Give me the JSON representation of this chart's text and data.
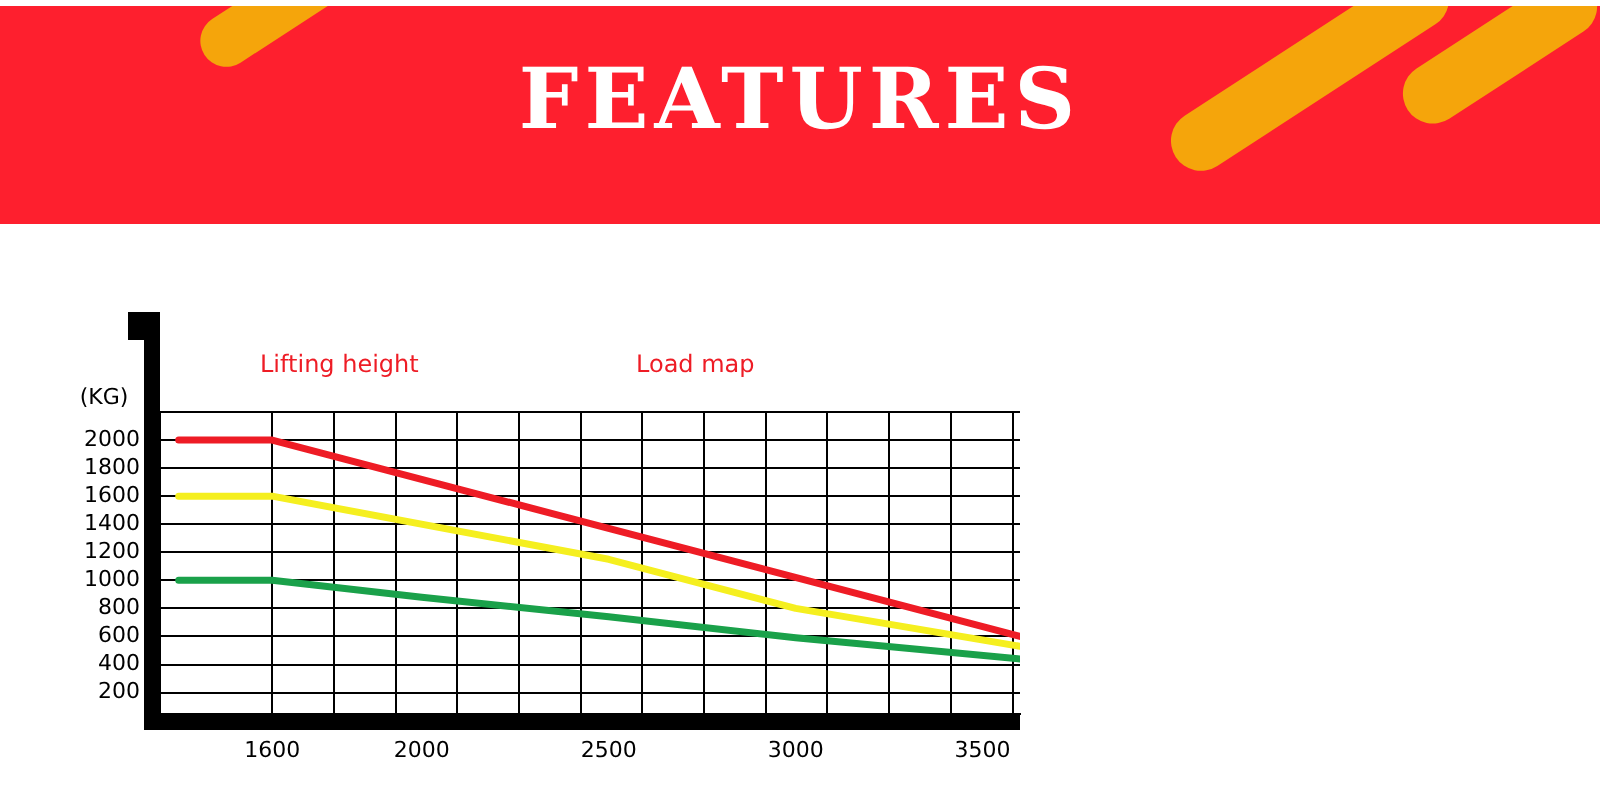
{
  "chart_data": {
    "type": "line",
    "title": "FEATURES",
    "ylabel": "(KG)",
    "annotations": [
      "Lifting height",
      "Load map"
    ],
    "series": [
      {
        "color": "#ee1c25",
        "x": [
          1350,
          1600,
          3600
        ],
        "values": [
          2000,
          2000,
          600
        ]
      },
      {
        "color": "#f5ef1f",
        "x": [
          1350,
          1600,
          2500,
          3000,
          3600
        ],
        "values": [
          1600,
          1600,
          1150,
          800,
          530
        ]
      },
      {
        "color": "#1aa14a",
        "x": [
          1350,
          1600,
          2000,
          2500,
          3000,
          3600
        ],
        "values": [
          1000,
          1000,
          880,
          740,
          590,
          440
        ]
      }
    ],
    "xlim": [
      1300,
      3600
    ],
    "xticks": [
      1600,
      {
        "value": 1765,
        "label": null
      },
      {
        "value": 1930,
        "label": null
      },
      2000,
      {
        "value": 2095,
        "label": null
      },
      {
        "value": 2260,
        "label": null
      },
      {
        "value": 2425,
        "label": null
      },
      2500,
      {
        "value": 2590,
        "label": null
      },
      {
        "value": 2755,
        "label": null
      },
      {
        "value": 2920,
        "label": null
      },
      3000,
      {
        "value": 3085,
        "label": null
      },
      {
        "value": 3250,
        "label": null
      },
      {
        "value": 3415,
        "label": null
      },
      3500,
      {
        "value": 3580,
        "label": null
      }
    ],
    "ylim": [
      50,
      2200
    ],
    "yticks": [
      200,
      400,
      600,
      800,
      1000,
      1200,
      1400,
      1600,
      1800,
      2000,
      {
        "value": 2200,
        "label": null
      }
    ],
    "grid": true,
    "legend": false,
    "marker": "none",
    "line_style": "solid"
  }
}
